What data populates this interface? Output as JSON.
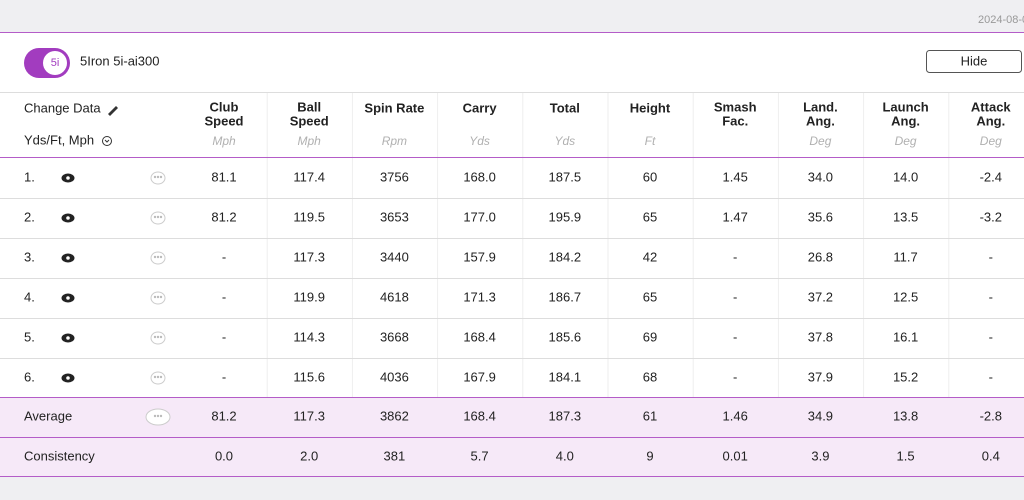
{
  "date": "2024-08-0",
  "header": {
    "badge": "5i",
    "club": "5Iron 5i-ai300",
    "button": "Hide"
  },
  "table": {
    "controls": [
      "Change Data",
      "Yds/Ft, Mph"
    ],
    "columns": [
      {
        "lines": [
          "Club",
          "Speed"
        ],
        "unit": "Mph"
      },
      {
        "lines": [
          "Ball",
          "Speed"
        ],
        "unit": "Mph"
      },
      {
        "lines": [
          "Spin Rate"
        ],
        "unit": "Rpm"
      },
      {
        "lines": [
          "Carry"
        ],
        "unit": "Yds"
      },
      {
        "lines": [
          "Total"
        ],
        "unit": "Yds"
      },
      {
        "lines": [
          "Height"
        ],
        "unit": "Ft"
      },
      {
        "lines": [
          "Smash",
          "Fac."
        ]
      },
      {
        "lines": [
          "Land.",
          "Ang."
        ],
        "unit": "Deg"
      },
      {
        "lines": [
          "Launch",
          "Ang."
        ],
        "unit": "Deg"
      },
      {
        "lines": [
          "Attack",
          "Ang."
        ],
        "unit": "Deg"
      }
    ],
    "rows": [
      {
        "label": "1.",
        "values": [
          "81.1",
          "117.4",
          "3756",
          "168.0",
          "187.5",
          "60",
          "1.45",
          "34.0",
          "14.0",
          "-2.4"
        ]
      },
      {
        "label": "2.",
        "values": [
          "81.2",
          "119.5",
          "3653",
          "177.0",
          "195.9",
          "65",
          "1.47",
          "35.6",
          "13.5",
          "-3.2"
        ]
      },
      {
        "label": "3.",
        "values": [
          "-",
          "117.3",
          "3440",
          "157.9",
          "184.2",
          "42",
          "-",
          "26.8",
          "11.7",
          "-"
        ]
      },
      {
        "label": "4.",
        "values": [
          "-",
          "119.9",
          "4618",
          "171.3",
          "186.7",
          "65",
          "-",
          "37.2",
          "12.5",
          "-"
        ]
      },
      {
        "label": "5.",
        "values": [
          "-",
          "114.3",
          "3668",
          "168.4",
          "185.6",
          "69",
          "-",
          "37.8",
          "16.1",
          "-"
        ]
      },
      {
        "label": "6.",
        "values": [
          "-",
          "115.6",
          "4036",
          "167.9",
          "184.1",
          "68",
          "-",
          "37.9",
          "15.2",
          "-"
        ]
      }
    ],
    "summary": [
      {
        "label": "Average",
        "values": [
          "81.2",
          "117.3",
          "3862",
          "168.4",
          "187.3",
          "61",
          "1.46",
          "34.9",
          "13.8",
          "-2.8"
        ]
      },
      {
        "label": "Consistency",
        "values": [
          "0.0",
          "2.0",
          "381",
          "5.7",
          "4.0",
          "9",
          "0.01",
          "3.9",
          "1.5",
          "0.4"
        ]
      }
    ]
  }
}
